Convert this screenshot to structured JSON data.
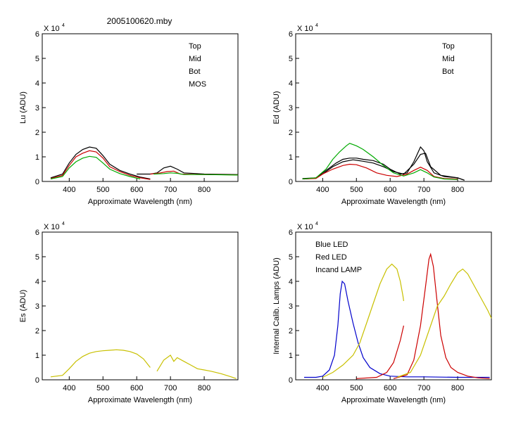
{
  "figure_title": "2005100620.mby",
  "colors": {
    "black": "#000000",
    "red": "#cc0000",
    "green": "#00aa00",
    "blue": "#0000cc",
    "yellow": "#c8c000"
  },
  "chart_data": [
    {
      "type": "line",
      "ylabel": "Lu (ADU)",
      "xlabel": "Approximate Wavelength (nm)",
      "exponent_label": "X 10",
      "exponent_power": "4",
      "xlim": [
        320,
        900
      ],
      "ylim": [
        0,
        6
      ],
      "xticks": [
        400,
        500,
        600,
        700,
        800
      ],
      "yticks": [
        0,
        1,
        2,
        3,
        4,
        5,
        6
      ],
      "legend": [
        "Top",
        "Mid",
        "Bot",
        "MOS"
      ],
      "series": [
        {
          "name": "Top",
          "color": "black",
          "points": [
            [
              345,
              0.15
            ],
            [
              380,
              0.3
            ],
            [
              400,
              0.75
            ],
            [
              420,
              1.1
            ],
            [
              440,
              1.3
            ],
            [
              460,
              1.4
            ],
            [
              480,
              1.35
            ],
            [
              500,
              1.05
            ],
            [
              520,
              0.7
            ],
            [
              550,
              0.45
            ],
            [
              580,
              0.3
            ],
            [
              610,
              0.18
            ],
            [
              640,
              0.1
            ]
          ]
        },
        {
          "name": "Mid",
          "color": "red",
          "points": [
            [
              345,
              0.12
            ],
            [
              380,
              0.25
            ],
            [
              400,
              0.65
            ],
            [
              420,
              1.0
            ],
            [
              440,
              1.15
            ],
            [
              460,
              1.25
            ],
            [
              480,
              1.2
            ],
            [
              500,
              0.95
            ],
            [
              520,
              0.6
            ],
            [
              550,
              0.4
            ],
            [
              580,
              0.25
            ],
            [
              610,
              0.15
            ],
            [
              640,
              0.08
            ]
          ]
        },
        {
          "name": "Bot",
          "color": "green",
          "points": [
            [
              345,
              0.1
            ],
            [
              380,
              0.2
            ],
            [
              400,
              0.55
            ],
            [
              420,
              0.8
            ],
            [
              440,
              0.95
            ],
            [
              460,
              1.02
            ],
            [
              480,
              0.98
            ],
            [
              500,
              0.75
            ],
            [
              520,
              0.5
            ],
            [
              550,
              0.32
            ],
            [
              580,
              0.2
            ],
            [
              610,
              0.1
            ]
          ]
        },
        {
          "name": "Top",
          "color": "black",
          "points": [
            [
              600,
              0.3
            ],
            [
              640,
              0.3
            ],
            [
              660,
              0.35
            ],
            [
              680,
              0.55
            ],
            [
              700,
              0.62
            ],
            [
              720,
              0.5
            ],
            [
              740,
              0.35
            ],
            [
              800,
              0.3
            ],
            [
              900,
              0.28
            ]
          ]
        },
        {
          "name": "Mid",
          "color": "red",
          "points": [
            [
              640,
              0.3
            ],
            [
              670,
              0.35
            ],
            [
              690,
              0.4
            ],
            [
              710,
              0.42
            ],
            [
              730,
              0.3
            ],
            [
              800,
              0.28
            ],
            [
              900,
              0.27
            ]
          ]
        },
        {
          "name": "Bot",
          "color": "green",
          "points": [
            [
              650,
              0.3
            ],
            [
              680,
              0.32
            ],
            [
              700,
              0.35
            ],
            [
              720,
              0.33
            ],
            [
              740,
              0.28
            ],
            [
              800,
              0.28
            ],
            [
              900,
              0.26
            ]
          ]
        }
      ]
    },
    {
      "type": "line",
      "ylabel": "Ed  (ADU)",
      "xlabel": "Approximate Wavelength (nm)",
      "exponent_label": "X 10",
      "exponent_power": "4",
      "xlim": [
        320,
        900
      ],
      "ylim": [
        0,
        6
      ],
      "xticks": [
        400,
        500,
        600,
        700,
        800
      ],
      "yticks": [
        0,
        1,
        2,
        3,
        4,
        5,
        6
      ],
      "legend": [
        "Top",
        "Mid",
        "Bot"
      ],
      "series": [
        {
          "name": "Top",
          "color": "black",
          "points": [
            [
              340,
              0.12
            ],
            [
              380,
              0.15
            ],
            [
              400,
              0.35
            ],
            [
              420,
              0.55
            ],
            [
              440,
              0.75
            ],
            [
              460,
              0.9
            ],
            [
              480,
              0.95
            ],
            [
              500,
              0.95
            ],
            [
              520,
              0.9
            ],
            [
              550,
              0.85
            ],
            [
              580,
              0.7
            ],
            [
              600,
              0.5
            ],
            [
              630,
              0.3
            ],
            [
              650,
              0.35
            ],
            [
              670,
              0.8
            ],
            [
              690,
              1.4
            ],
            [
              700,
              1.25
            ],
            [
              710,
              0.8
            ],
            [
              730,
              0.35
            ],
            [
              760,
              0.2
            ],
            [
              800,
              0.15
            ],
            [
              820,
              0.05
            ]
          ]
        },
        {
          "name": "Top",
          "color": "black",
          "points": [
            [
              345,
              0.1
            ],
            [
              380,
              0.14
            ],
            [
              400,
              0.3
            ],
            [
              430,
              0.6
            ],
            [
              460,
              0.8
            ],
            [
              490,
              0.88
            ],
            [
              520,
              0.82
            ],
            [
              550,
              0.75
            ],
            [
              580,
              0.6
            ],
            [
              610,
              0.4
            ],
            [
              640,
              0.3
            ],
            [
              670,
              0.7
            ],
            [
              690,
              1.1
            ],
            [
              705,
              1.15
            ],
            [
              720,
              0.6
            ],
            [
              750,
              0.25
            ],
            [
              800,
              0.15
            ],
            [
              820,
              0.05
            ]
          ]
        },
        {
          "name": "Mid",
          "color": "red",
          "points": [
            [
              340,
              0.1
            ],
            [
              380,
              0.12
            ],
            [
              400,
              0.3
            ],
            [
              430,
              0.5
            ],
            [
              460,
              0.65
            ],
            [
              480,
              0.7
            ],
            [
              500,
              0.68
            ],
            [
              530,
              0.55
            ],
            [
              560,
              0.35
            ],
            [
              590,
              0.25
            ],
            [
              620,
              0.2
            ],
            [
              650,
              0.3
            ],
            [
              670,
              0.45
            ],
            [
              690,
              0.58
            ],
            [
              710,
              0.45
            ],
            [
              730,
              0.2
            ],
            [
              760,
              0.12
            ],
            [
              800,
              0.1
            ]
          ]
        },
        {
          "name": "Bot",
          "color": "green",
          "points": [
            [
              340,
              0.1
            ],
            [
              380,
              0.15
            ],
            [
              410,
              0.5
            ],
            [
              430,
              0.9
            ],
            [
              450,
              1.2
            ],
            [
              470,
              1.45
            ],
            [
              480,
              1.55
            ],
            [
              500,
              1.45
            ],
            [
              520,
              1.3
            ],
            [
              550,
              1.0
            ],
            [
              580,
              0.65
            ],
            [
              610,
              0.35
            ],
            [
              640,
              0.22
            ],
            [
              670,
              0.35
            ],
            [
              690,
              0.48
            ],
            [
              710,
              0.35
            ],
            [
              730,
              0.18
            ],
            [
              760,
              0.1
            ],
            [
              800,
              0.08
            ]
          ]
        }
      ]
    },
    {
      "type": "line",
      "ylabel": "Es  (ADU)",
      "xlabel": "Approximate Wavelength (nm)",
      "exponent_label": "X 10",
      "exponent_power": "4",
      "xlim": [
        320,
        900
      ],
      "ylim": [
        0,
        6
      ],
      "xticks": [
        400,
        500,
        600,
        700,
        800
      ],
      "yticks": [
        0,
        1,
        2,
        3,
        4,
        5,
        6
      ],
      "legend": [],
      "series": [
        {
          "name": "Es",
          "color": "yellow",
          "points": [
            [
              345,
              0.12
            ],
            [
              380,
              0.18
            ],
            [
              400,
              0.45
            ],
            [
              420,
              0.75
            ],
            [
              440,
              0.95
            ],
            [
              460,
              1.08
            ],
            [
              480,
              1.15
            ],
            [
              500,
              1.18
            ],
            [
              520,
              1.2
            ],
            [
              540,
              1.22
            ],
            [
              560,
              1.2
            ],
            [
              580,
              1.15
            ],
            [
              600,
              1.05
            ],
            [
              620,
              0.85
            ],
            [
              640,
              0.5
            ]
          ]
        },
        {
          "name": "Es",
          "color": "yellow",
          "points": [
            [
              660,
              0.35
            ],
            [
              680,
              0.8
            ],
            [
              700,
              1.0
            ],
            [
              710,
              0.75
            ],
            [
              720,
              0.9
            ],
            [
              740,
              0.75
            ],
            [
              760,
              0.6
            ],
            [
              780,
              0.45
            ],
            [
              800,
              0.4
            ],
            [
              820,
              0.35
            ],
            [
              850,
              0.25
            ],
            [
              880,
              0.12
            ],
            [
              895,
              0.05
            ]
          ]
        }
      ]
    },
    {
      "type": "line",
      "ylabel": "Internal Calib. Lamps (ADU)",
      "xlabel": "Approximate Wavelength (nm)",
      "exponent_label": "X 10",
      "exponent_power": "4",
      "xlim": [
        320,
        900
      ],
      "ylim": [
        0,
        6
      ],
      "xticks": [
        400,
        500,
        600,
        700,
        800
      ],
      "yticks": [
        0,
        1,
        2,
        3,
        4,
        5,
        6
      ],
      "legend": [
        "Blue LED",
        "Red LED",
        "Incand LAMP"
      ],
      "series": [
        {
          "name": "Blue LED",
          "color": "blue",
          "points": [
            [
              345,
              0.1
            ],
            [
              380,
              0.1
            ],
            [
              400,
              0.15
            ],
            [
              420,
              0.4
            ],
            [
              435,
              1.0
            ],
            [
              445,
              2.2
            ],
            [
              452,
              3.5
            ],
            [
              458,
              4.0
            ],
            [
              465,
              3.9
            ],
            [
              475,
              3.2
            ],
            [
              490,
              2.3
            ],
            [
              505,
              1.5
            ],
            [
              520,
              0.9
            ],
            [
              540,
              0.5
            ],
            [
              570,
              0.25
            ],
            [
              600,
              0.15
            ],
            [
              650,
              0.12
            ],
            [
              700,
              0.12
            ],
            [
              800,
              0.1
            ],
            [
              895,
              0.1
            ]
          ]
        },
        {
          "name": "Red LED",
          "color": "red",
          "points": [
            [
              500,
              0.05
            ],
            [
              560,
              0.1
            ],
            [
              590,
              0.3
            ],
            [
              610,
              0.7
            ],
            [
              630,
              1.6
            ],
            [
              640,
              2.2
            ]
          ]
        },
        {
          "name": "Red LED",
          "color": "red",
          "points": [
            [
              610,
              0.05
            ],
            [
              650,
              0.2
            ],
            [
              670,
              0.8
            ],
            [
              690,
              2.2
            ],
            [
              705,
              3.8
            ],
            [
              715,
              4.9
            ],
            [
              720,
              5.1
            ],
            [
              728,
              4.6
            ],
            [
              738,
              3.3
            ],
            [
              750,
              1.8
            ],
            [
              765,
              0.9
            ],
            [
              780,
              0.5
            ],
            [
              800,
              0.3
            ],
            [
              830,
              0.15
            ],
            [
              860,
              0.08
            ],
            [
              895,
              0.05
            ]
          ]
        },
        {
          "name": "Incand LAMP",
          "color": "yellow",
          "points": [
            [
              400,
              0.1
            ],
            [
              430,
              0.3
            ],
            [
              460,
              0.6
            ],
            [
              490,
              1.0
            ],
            [
              510,
              1.5
            ],
            [
              530,
              2.3
            ],
            [
              550,
              3.1
            ],
            [
              570,
              3.9
            ],
            [
              590,
              4.5
            ],
            [
              605,
              4.7
            ],
            [
              620,
              4.5
            ],
            [
              630,
              4.0
            ],
            [
              638,
              3.4
            ],
            [
              640,
              3.2
            ]
          ]
        },
        {
          "name": "Incand LAMP",
          "color": "yellow",
          "points": [
            [
              620,
              0.1
            ],
            [
              660,
              0.3
            ],
            [
              690,
              1.0
            ],
            [
              720,
              2.2
            ],
            [
              740,
              3.0
            ],
            [
              760,
              3.4
            ],
            [
              780,
              3.9
            ],
            [
              800,
              4.35
            ],
            [
              815,
              4.5
            ],
            [
              830,
              4.3
            ],
            [
              850,
              3.8
            ],
            [
              870,
              3.3
            ],
            [
              890,
              2.8
            ],
            [
              900,
              2.5
            ]
          ]
        }
      ]
    }
  ]
}
